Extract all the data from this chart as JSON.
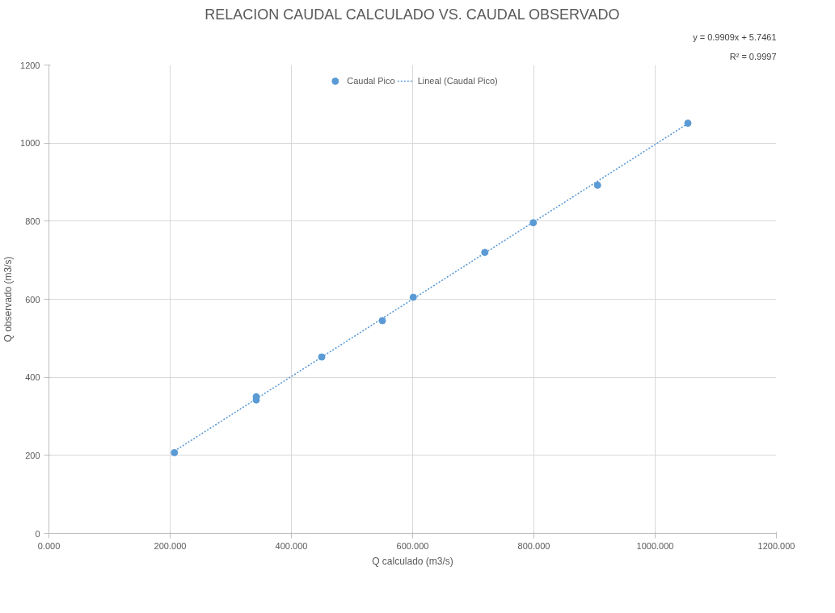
{
  "chart_data": {
    "type": "scatter",
    "title": "RELACION CAUDAL CALCULADO VS. CAUDAL OBSERVADO",
    "xlabel": "Q calculado (m3/s)",
    "ylabel": "Q observado (m3/s)",
    "annotations": [
      "y = 0.9909x + 5.7461",
      "R² = 0.9997"
    ],
    "series": [
      {
        "name": "Caudal Pico",
        "color": "#5b9bd5",
        "marker": "circle",
        "x": [
          207,
          342,
          342,
          450,
          550,
          601,
          719,
          799,
          905,
          1054
        ],
        "values": [
          207,
          350,
          342,
          452,
          545,
          605,
          720,
          796,
          892,
          1051
        ]
      },
      {
        "name": "Lineal (Caudal Pico)",
        "type": "line",
        "color": "#5b9bd5",
        "marker": "none",
        "line_style": "dotted",
        "x": [
          207,
          1054
        ],
        "values": [
          211,
          1050
        ]
      }
    ],
    "xlim": [
      0,
      1200
    ],
    "ylim": [
      0,
      1200
    ],
    "xticks": [
      {
        "value": 0,
        "label": "0.000"
      },
      {
        "value": 200,
        "label": "200.000"
      },
      {
        "value": 400,
        "label": "400.000"
      },
      {
        "value": 600,
        "label": "600.000"
      },
      {
        "value": 800,
        "label": "800.000"
      },
      {
        "value": 1000,
        "label": "1000.000"
      },
      {
        "value": 1200,
        "label": "1200.000"
      }
    ],
    "yticks": [
      0,
      200,
      400,
      600,
      800,
      1000,
      1200
    ],
    "grid": true,
    "legend": "top"
  }
}
